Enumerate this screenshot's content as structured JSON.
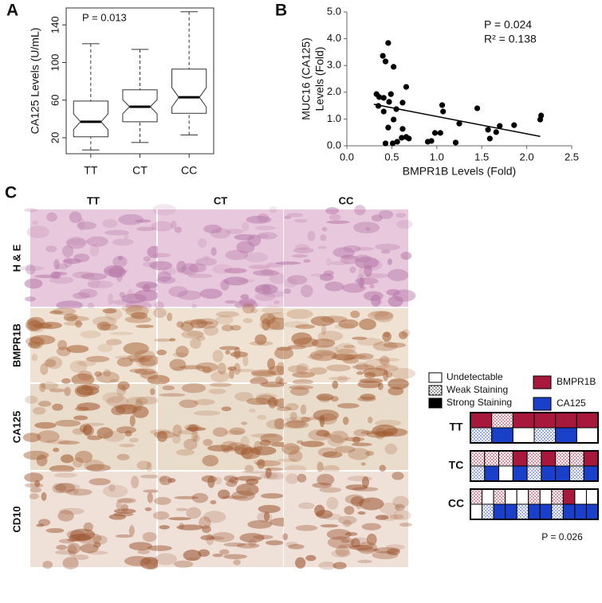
{
  "chart_data": [
    {
      "type": "box",
      "label": "A",
      "y_label": "CA125 Levels (U/mL)",
      "annotation": "P = 0.013",
      "categories": [
        "TT",
        "CT",
        "CC"
      ],
      "min": [
        7,
        15,
        23
      ],
      "q1": [
        21,
        37,
        46
      ],
      "median": [
        37,
        53,
        63
      ],
      "q3": [
        59,
        71,
        93
      ],
      "max": [
        120,
        114,
        154
      ],
      "notch": true,
      "color": "#ffffff",
      "ylim": [
        3,
        158
      ],
      "yticks": [
        20,
        60,
        100,
        140
      ]
    },
    {
      "type": "scatter",
      "label": "B",
      "x_label": "BMPR1B Levels (Fold)",
      "y_label": [
        "MUC16 (CA125)",
        "Levels (Fold)"
      ],
      "annotations": [
        "P = 0.024",
        "R² = 0.138"
      ],
      "color": "#000000",
      "x": [
        0.33,
        0.36,
        0.41,
        0.4,
        0.46,
        0.43,
        0.52,
        0.49,
        0.47,
        0.35,
        0.41,
        0.55,
        0.52,
        0.46,
        0.66,
        0.62,
        0.62,
        0.66,
        0.61,
        0.43,
        0.51,
        0.56,
        0.69,
        0.94,
        0.9,
        0.98,
        1.04,
        1.06,
        1.07,
        1.25,
        1.21,
        1.45,
        1.57,
        1.59,
        1.66,
        1.7,
        1.86,
        2.15,
        2.16
      ],
      "y": [
        1.93,
        1.82,
        1.79,
        3.36,
        3.84,
        3.15,
        2.95,
        1.93,
        1.64,
        1.49,
        1.28,
        1.37,
        0.98,
        0.68,
        2.2,
        1.61,
        0.63,
        0.33,
        0.3,
        0.09,
        0.09,
        0.15,
        0.27,
        0.18,
        0.15,
        0.48,
        0.48,
        1.52,
        1.28,
        0.83,
        0.12,
        1.4,
        0.6,
        0.27,
        0.51,
        0.74,
        0.77,
        0.98,
        1.13
      ],
      "trendline": {
        "x": [
          0.3,
          2.15
        ],
        "y": [
          1.55,
          0.35
        ]
      },
      "xlim": [
        0,
        2.5
      ],
      "ylim": [
        0,
        5
      ],
      "xticks": [
        {
          "value": 0,
          "label": "0.0"
        },
        0.5,
        {
          "value": 1,
          "label": "1.0"
        },
        1.5,
        {
          "value": 2,
          "label": "2.0"
        },
        2.5
      ],
      "yticks": [
        {
          "value": 0,
          "label": "0.0"
        },
        {
          "value": 1,
          "label": "1.0"
        },
        {
          "value": 2,
          "label": "2.0"
        },
        {
          "value": 3,
          "label": "3.0"
        },
        {
          "value": 4,
          "label": "4.0"
        },
        {
          "value": 5,
          "label": "5.0"
        }
      ]
    }
  ],
  "panel_c": {
    "label": "C",
    "columns": [
      "TT",
      "CT",
      "CC"
    ],
    "rows": [
      "H & E",
      "BMPR1B",
      "CA125",
      "CD10"
    ],
    "legend": {
      "levels": [
        "Undetectable",
        "Weak Staining",
        "Strong Staining"
      ],
      "markers": [
        "BMPR1B",
        "CA125"
      ]
    },
    "colors": [
      "#a8183c",
      "#1a3fc8"
    ],
    "groups": [
      {
        "name": "TT",
        "values": [
          [
            2,
            1,
            2,
            2,
            2,
            2
          ],
          [
            1,
            2,
            0,
            1,
            2,
            0
          ]
        ]
      },
      {
        "name": "TC",
        "values": [
          [
            1,
            1,
            1,
            2,
            1,
            2,
            1,
            1,
            2
          ],
          [
            1,
            2,
            0,
            2,
            1,
            2,
            2,
            1,
            2
          ]
        ]
      },
      {
        "name": "CC",
        "values": [
          [
            1,
            0,
            1,
            0,
            0,
            1,
            0,
            1,
            2,
            0,
            0
          ],
          [
            0,
            1,
            2,
            2,
            1,
            2,
            2,
            1,
            2,
            2,
            2
          ]
        ]
      }
    ],
    "annotation": "P = 0.026"
  }
}
